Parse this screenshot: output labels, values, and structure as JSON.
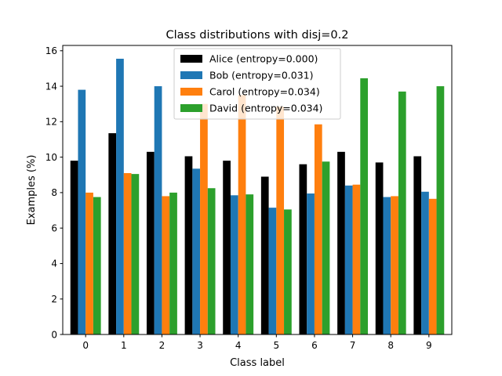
{
  "chart_data": {
    "type": "bar",
    "title": "Class distributions with disj=0.2",
    "xlabel": "Class label",
    "ylabel": "Examples (%)",
    "categories": [
      "0",
      "1",
      "2",
      "3",
      "4",
      "5",
      "6",
      "7",
      "8",
      "9"
    ],
    "ylim": [
      0,
      16.3
    ],
    "yticks": [
      "0",
      "2",
      "4",
      "6",
      "8",
      "10",
      "12",
      "14",
      "16"
    ],
    "grid": false,
    "legend_position": "top-center",
    "series": [
      {
        "name": "Alice (entropy=0.000)",
        "color": "#000000",
        "values": [
          9.8,
          11.35,
          10.3,
          10.05,
          9.8,
          8.9,
          9.6,
          10.3,
          9.7,
          10.05
        ]
      },
      {
        "name": "Bob (entropy=0.031)",
        "color": "#1f77b4",
        "values": [
          13.8,
          15.55,
          14.0,
          9.35,
          7.85,
          7.15,
          7.95,
          8.4,
          7.75,
          8.05
        ]
      },
      {
        "name": "Carol (entropy=0.034)",
        "color": "#ff7f0e",
        "values": [
          8.0,
          9.1,
          7.8,
          13.0,
          13.5,
          12.85,
          11.85,
          8.45,
          7.8,
          7.65
        ]
      },
      {
        "name": "David (entropy=0.034)",
        "color": "#2ca02c",
        "values": [
          7.75,
          9.05,
          8.0,
          8.25,
          7.9,
          7.05,
          9.75,
          14.45,
          13.7,
          14.0
        ]
      }
    ]
  }
}
